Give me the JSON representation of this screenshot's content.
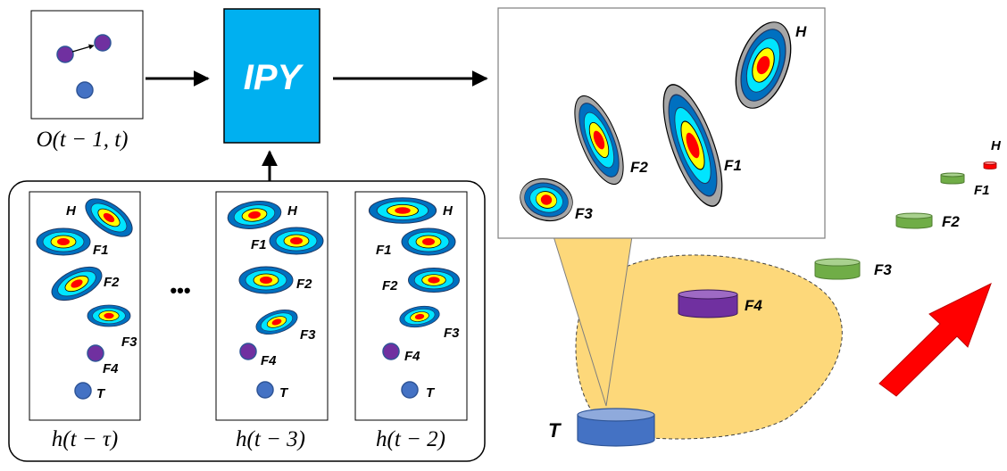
{
  "observation": {
    "label": "O(t − 1, t)"
  },
  "model": {
    "label": "IPY",
    "color": "#00b0f0"
  },
  "history": {
    "ellipsis": "•••",
    "panels": [
      {
        "label": "h(t − τ)",
        "items": [
          "H",
          "F1",
          "F2",
          "F3",
          "F4",
          "T"
        ]
      },
      {
        "label": "h(t − 3)",
        "items": [
          "H",
          "F1",
          "F2",
          "F3",
          "F4",
          "T"
        ]
      },
      {
        "label": "h(t − 2)",
        "items": [
          "H",
          "F1",
          "F2",
          "F3",
          "F4",
          "T"
        ]
      }
    ]
  },
  "prediction": {
    "items": [
      "H",
      "F1",
      "F2",
      "F3"
    ]
  },
  "scene": {
    "target": "T",
    "objects": [
      "F4",
      "F3",
      "F2",
      "F1",
      "H"
    ],
    "colors": {
      "target": "#4472c4",
      "F4": "#7030a0",
      "F": "#70ad47",
      "H": "#ff0000",
      "zone": "#fdd87a",
      "arrow": "#ff0000"
    }
  }
}
